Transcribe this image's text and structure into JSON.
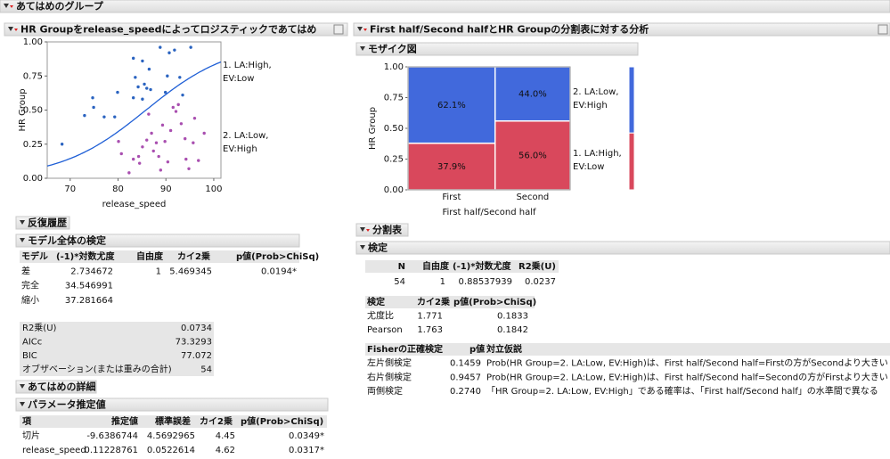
{
  "window_title": "あてはめのグループ",
  "left": {
    "logistic_title": "HR Groupをrelease_speedによってロジスティックであてはめ",
    "iteration_title": "反復履歴",
    "whole_model": {
      "title": "モデル全体の検定",
      "columns": [
        "モデル",
        "(-1)*対数尤度",
        "自由度",
        "カイ2乗",
        "p値(Prob>ChiSq)"
      ],
      "rows": [
        [
          "差",
          2.734672,
          1,
          5.469345,
          "0.0194*"
        ],
        [
          "完全",
          34.546991
        ],
        [
          "縮小",
          37.281664
        ]
      ]
    },
    "fit_stats": {
      "rows": [
        [
          "R2乗(U)",
          0.0734
        ],
        [
          "AICc",
          73.3293
        ],
        [
          "BIC",
          77.072
        ],
        [
          "オブザベーション(または重みの合計)",
          54
        ]
      ]
    },
    "fit_details_title": "あてはめの詳細",
    "params": {
      "title": "パラメータ推定値",
      "columns": [
        "項",
        "推定値",
        "標準誤差",
        "カイ2乗",
        "p値(Prob>ChiSq)"
      ],
      "rows": [
        [
          "切片",
          -9.6386744,
          4.5692965,
          4.45,
          "0.0349*"
        ],
        [
          "release_speed",
          0.11228761,
          0.0522614,
          4.62,
          "0.0317*"
        ]
      ]
    },
    "significant_color": "#e0405a"
  },
  "right": {
    "analysis_title": "First half/Second halfとHR Groupの分割表に対する分析",
    "mosaic_title": "モザイク図",
    "contingency_title": "分割表",
    "tests_title": "検定",
    "summary": {
      "columns": [
        "N",
        "自由度",
        "(-1)*対数尤度",
        "R2乗(U)"
      ],
      "rows": [
        [
          54,
          1,
          0.88537939,
          0.0237
        ]
      ]
    },
    "chi": {
      "columns": [
        "検定",
        "カイ2乗",
        "p値(Prob>ChiSq)"
      ],
      "rows": [
        [
          "尤度比",
          1.771,
          0.1833
        ],
        [
          "Pearson",
          1.763,
          0.1842
        ]
      ]
    },
    "fisher": {
      "columns": [
        "Fisherの正確検定",
        "p値",
        "対立仮説"
      ],
      "rows": [
        [
          "左片側検定",
          0.1459,
          "Prob(HR Group=2. LA:Low,  EV:High)は、First half/Second half=Firstの方がSecondより大きい"
        ],
        [
          "右片側検定",
          0.9457,
          "Prob(HR Group=2. LA:Low,  EV:High)は、First half/Second half=Secondの方がFirstより大きい"
        ],
        [
          "両側検定",
          "0.2740",
          "「HR Group=2. LA:Low,  EV:High」である確率は、「First half/Second half」の水準間で異なる"
        ]
      ]
    }
  },
  "chart_data": [
    {
      "type": "scatter",
      "xlabel": "release_speed",
      "ylabel": "HR Group",
      "xlim": [
        65.2,
        101.5
      ],
      "xticks": [
        70,
        80,
        90,
        100
      ],
      "ylim": [
        0,
        1
      ],
      "yticks": [
        {
          "value": 0,
          "label": "0.00"
        },
        {
          "value": 0.25,
          "label": "0.25"
        },
        {
          "value": 0.5,
          "label": "0.50"
        },
        {
          "value": 0.75,
          "label": "0.75"
        },
        {
          "value": 1,
          "label": "1.00"
        }
      ],
      "region_labels": [
        "1. LA:High, EV:Low",
        "2. LA:Low, EV:High"
      ],
      "curve_color": "#1f5fd6",
      "series": [
        {
          "color": "#2a63c0",
          "x": [
            68.3,
            73,
            74.7,
            74.9,
            77.1,
            79.3,
            79.9,
            83.2,
            85.1,
            83.6,
            84.2,
            85.5,
            86,
            86.8,
            88.8,
            90.7,
            91.8,
            92.9,
            93.5,
            95.2,
            83.2,
            85.1,
            89.9,
            90.3,
            86.5
          ],
          "values": [
            0.25,
            0.46,
            0.59,
            0.52,
            0.45,
            0.45,
            0.63,
            0.88,
            0.86,
            0.74,
            0.67,
            0.69,
            0.66,
            0.65,
            0.96,
            0.92,
            0.94,
            0.74,
            0.61,
            0.96,
            0.59,
            0.58,
            0.63,
            0.75,
            0.8
          ]
        },
        {
          "color": "#a94fb0",
          "x": [
            80.1,
            80.7,
            82.3,
            83.2,
            84.3,
            84.5,
            85.1,
            86,
            86.4,
            87,
            87.4,
            88,
            88.5,
            88.9,
            89.3,
            89.8,
            90.4,
            91,
            91.5,
            92.1,
            92.6,
            93.2,
            94,
            94.2,
            94.8,
            95.7,
            96,
            96.8,
            98
          ],
          "values": [
            0.27,
            0.18,
            0.04,
            0.14,
            0.16,
            0.11,
            0.23,
            0.28,
            0.47,
            0.33,
            0.2,
            0.26,
            0.16,
            0.06,
            0.39,
            0.27,
            0.12,
            0.35,
            0.52,
            0.49,
            0.54,
            0.4,
            0.29,
            0.14,
            0.07,
            0.26,
            0.44,
            0.13,
            0.33
          ]
        }
      ]
    },
    {
      "type": "mosaic",
      "xlabel": "First half/Second half",
      "ylabel": "HR Group",
      "categories": [
        "First",
        "Second"
      ],
      "column_shares": [
        0.537,
        0.463
      ],
      "ylim": [
        0,
        1
      ],
      "yticks": [
        {
          "value": 0,
          "label": "0.00"
        },
        {
          "value": 0.25,
          "label": "0.25"
        },
        {
          "value": 0.5,
          "label": "0.50"
        },
        {
          "value": 0.75,
          "label": "0.75"
        },
        {
          "value": 1,
          "label": "1.00"
        }
      ],
      "series": [
        {
          "name": "1. LA:High, EV:Low",
          "color": "#d9485c",
          "values": [
            0.379,
            0.56
          ],
          "value_labels": [
            "37.9%",
            "56.0%"
          ]
        },
        {
          "name": "2. LA:Low, EV:High",
          "color": "#4169dc",
          "values": [
            0.621,
            0.44
          ],
          "value_labels": [
            "62.1%",
            "44.0%"
          ]
        }
      ]
    }
  ]
}
